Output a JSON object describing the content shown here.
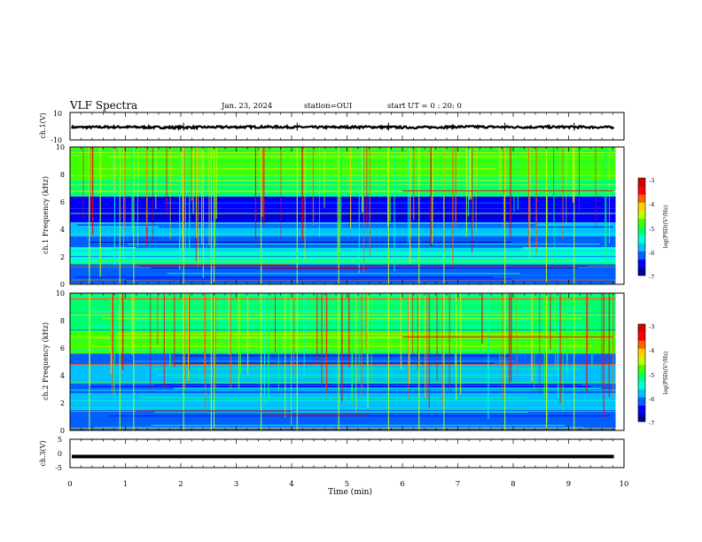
{
  "header": {
    "title": "VLF Spectra",
    "date": "Jan. 23, 2024",
    "station": "station=OUI",
    "start": "start UT =   0 : 20: 0"
  },
  "colormap": [
    "#0000a0",
    "#0000ff",
    "#0060ff",
    "#00c0ff",
    "#00ffd0",
    "#00ff70",
    "#40ff00",
    "#c0ff00",
    "#ffd000",
    "#ff6000",
    "#ff0000",
    "#d00000"
  ],
  "chart_data": [
    {
      "type": "line",
      "panel": "ch1_waveform",
      "ylabel": "ch.1(V)",
      "ylim": [
        -10,
        10
      ],
      "yticks": [
        "10",
        "-10"
      ],
      "xlim": [
        0,
        10
      ],
      "series": [
        {
          "values": [
            -0.8,
            -0.6,
            -0.9,
            -0.7,
            -0.5,
            -0.8,
            -0.6,
            -0.9,
            -0.4,
            -0.7,
            -0.6,
            -0.8
          ]
        }
      ],
      "color": "#000000"
    },
    {
      "type": "heatmap",
      "panel": "ch1_spectrogram",
      "ylabel": "ch.1 Frequency (kHz)",
      "xlim": [
        0,
        10
      ],
      "ylim": [
        0,
        10
      ],
      "yticks": [
        "0",
        "2",
        "4",
        "6",
        "8",
        "10"
      ],
      "data_extent_min": 9.85,
      "colorbar": {
        "label": "log(PSD)(V²/Hz)",
        "range": [
          -7,
          -3
        ],
        "ticks": [
          "-3",
          "-4",
          "-5",
          "-6",
          "-7"
        ]
      },
      "bands_kHz": [
        {
          "from": 0,
          "to": 1.5,
          "level": -6.2
        },
        {
          "from": 1.5,
          "to": 2.7,
          "level": -5.6
        },
        {
          "from": 2.7,
          "to": 3.5,
          "level": -6.3
        },
        {
          "from": 3.5,
          "to": 4.5,
          "level": -6.0
        },
        {
          "from": 4.5,
          "to": 5.5,
          "level": -6.6
        },
        {
          "from": 5.5,
          "to": 6.4,
          "level": -6.4
        },
        {
          "from": 6.4,
          "to": 7.6,
          "level": -5.2
        },
        {
          "from": 7.6,
          "to": 10,
          "level": -4.9
        }
      ],
      "events_min": [
        0.35,
        0.9,
        1.15,
        2.05,
        2.55,
        2.6,
        3.45,
        4.1,
        4.85,
        5.75,
        6.3,
        6.75,
        7.85,
        8.6,
        9.1
      ]
    },
    {
      "type": "heatmap",
      "panel": "ch2_spectrogram",
      "ylabel": "ch.2 Frequency (kHz)",
      "xlim": [
        0,
        10
      ],
      "ylim": [
        0,
        10
      ],
      "yticks": [
        "0",
        "2",
        "4",
        "6",
        "8",
        "10"
      ],
      "data_extent_min": 9.85,
      "colorbar": {
        "label": "log(PSD)(V²/Hz)",
        "range": [
          -7,
          -3
        ],
        "ticks": [
          "-3",
          "-4",
          "-5",
          "-6",
          "-7"
        ]
      },
      "bands_kHz": [
        {
          "from": 0,
          "to": 1.5,
          "level": -6.2
        },
        {
          "from": 1.5,
          "to": 2.7,
          "level": -5.7
        },
        {
          "from": 2.7,
          "to": 3.5,
          "level": -6.3
        },
        {
          "from": 3.5,
          "to": 4.8,
          "level": -5.8
        },
        {
          "from": 4.8,
          "to": 5.6,
          "level": -6.2
        },
        {
          "from": 5.6,
          "to": 7.2,
          "level": -5.0
        },
        {
          "from": 7.2,
          "to": 10,
          "level": -5.1
        }
      ],
      "events_min": [
        0.35,
        0.9,
        1.15,
        2.05,
        2.55,
        2.6,
        3.45,
        4.1,
        4.85,
        5.75,
        6.3,
        6.75,
        7.85,
        8.6,
        9.1
      ]
    },
    {
      "type": "line",
      "panel": "ch3_waveform",
      "ylabel": "ch.3(V)",
      "ylim": [
        -5,
        5
      ],
      "yticks": [
        "5",
        "0",
        "-5"
      ],
      "xlim": [
        0,
        10
      ],
      "xlabel": "Time (min)",
      "xticks": [
        "0",
        "1",
        "2",
        "3",
        "4",
        "5",
        "6",
        "7",
        "8",
        "9",
        "10"
      ],
      "series": [
        {
          "values": [
            -1.1,
            -1.1,
            -1.1,
            -1.1,
            -1.1,
            -1.1,
            -1.1,
            -1.1,
            -1.1,
            -1.1,
            -1.1
          ]
        }
      ],
      "color": "#000000"
    }
  ]
}
